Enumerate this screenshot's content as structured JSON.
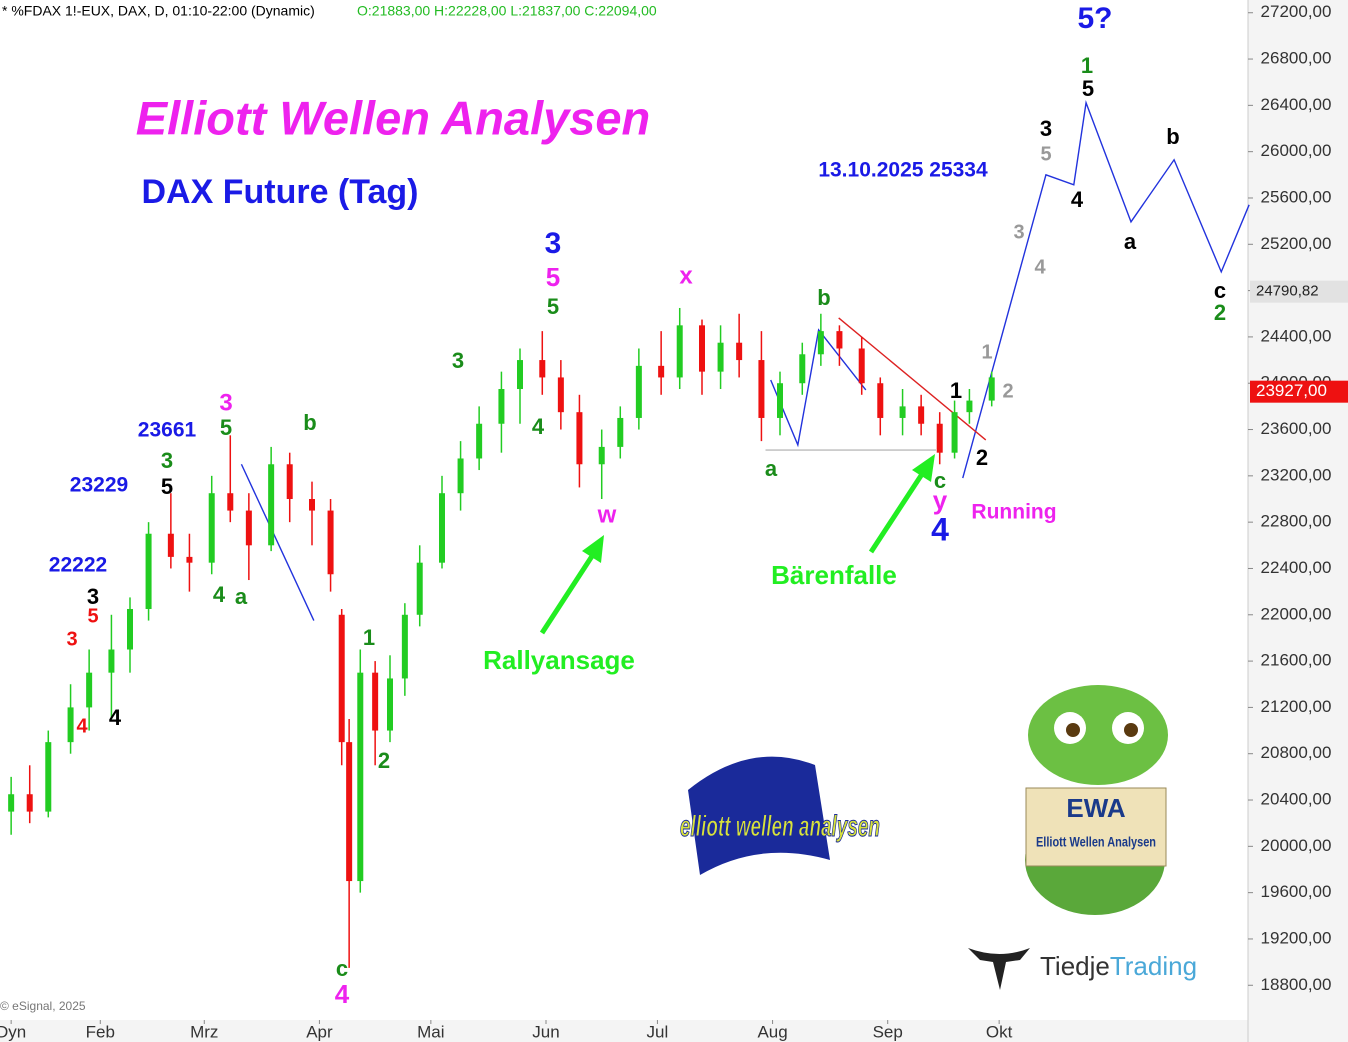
{
  "header": {
    "instrument": "* %FDAX 1!-EUX, DAX, D, 01:10-22:00 (Dynamic)",
    "ohlc": "O:21883,00 H:22228,00 L:21837,00 C:22094,00",
    "copyright": "© eSignal, 2025"
  },
  "chart_data": {
    "type": "candlestick",
    "title": "Elliott Wellen Analysen",
    "subtitle": "DAX Future (Tag)",
    "x": [
      8,
      13,
      18,
      24,
      29,
      35,
      40,
      45,
      51,
      56,
      62,
      67,
      72,
      78,
      83,
      89,
      94,
      97,
      99,
      102,
      106,
      110,
      114,
      118,
      124,
      129,
      134,
      140,
      145,
      151,
      156,
      161,
      167,
      172,
      177,
      183,
      188,
      194,
      199,
      204,
      210,
      215,
      221,
      226,
      231,
      237,
      242,
      248,
      253,
      258,
      262,
      266,
      272
    ],
    "open": [
      20300,
      20450,
      20300,
      20900,
      21200,
      21500,
      21700,
      22050,
      22700,
      22500,
      22450,
      23050,
      22900,
      22600,
      23300,
      23000,
      22900,
      22000,
      20900,
      19700,
      21500,
      21000,
      21450,
      22000,
      22450,
      23050,
      23350,
      23650,
      23950,
      24200,
      24050,
      23750,
      23300,
      23450,
      23700,
      24150,
      24050,
      24500,
      24100,
      24350,
      24200,
      23700,
      24000,
      24250,
      24450,
      24300,
      24000,
      23700,
      23800,
      23650,
      23400,
      23750,
      23850
    ],
    "high": [
      20600,
      20700,
      21000,
      21400,
      21700,
      22000,
      22150,
      22800,
      23050,
      22700,
      23200,
      23550,
      23050,
      23450,
      23400,
      23150,
      23000,
      22050,
      21100,
      21700,
      21600,
      21650,
      22100,
      22600,
      23200,
      23500,
      23800,
      24100,
      24300,
      24450,
      24200,
      23900,
      23600,
      23800,
      24300,
      24450,
      24650,
      24550,
      24500,
      24600,
      24450,
      24100,
      24350,
      24600,
      24500,
      24400,
      24050,
      23950,
      23900,
      23750,
      23850,
      23950,
      24100
    ],
    "low": [
      20100,
      20200,
      20250,
      20800,
      21000,
      21100,
      21500,
      21950,
      22400,
      22200,
      22350,
      22800,
      22300,
      22550,
      22800,
      22600,
      22200,
      20700,
      18950,
      19600,
      20700,
      20900,
      21300,
      21900,
      22400,
      22900,
      23250,
      23400,
      23650,
      23900,
      23600,
      23100,
      23000,
      23350,
      23600,
      23900,
      23950,
      23900,
      23950,
      24050,
      23500,
      23550,
      23900,
      24150,
      24150,
      23900,
      23550,
      23550,
      23550,
      23300,
      23350,
      23650,
      23800
    ],
    "close": [
      20450,
      20300,
      20900,
      21200,
      21500,
      21700,
      22050,
      22700,
      22500,
      22450,
      23050,
      22900,
      22600,
      23300,
      23000,
      22900,
      22350,
      20900,
      19700,
      21500,
      21000,
      21450,
      22000,
      22450,
      23050,
      23350,
      23650,
      23950,
      24200,
      24050,
      23750,
      23300,
      23450,
      23700,
      24150,
      24050,
      24500,
      24100,
      24350,
      24200,
      23700,
      24000,
      24250,
      24450,
      24300,
      24000,
      23700,
      23800,
      23650,
      23400,
      23750,
      23850,
      24050
    ],
    "up_color": "#22cc22",
    "down_color": "#ee1111",
    "xlim": [
      5,
      341
    ],
    "xticks": [
      {
        "value": 8,
        "label": "Dyn"
      },
      {
        "value": 32,
        "label": "Feb"
      },
      {
        "value": 60,
        "label": "Mrz"
      },
      {
        "value": 91,
        "label": "Apr"
      },
      {
        "value": 121,
        "label": "Mai"
      },
      {
        "value": 152,
        "label": "Jun"
      },
      {
        "value": 182,
        "label": "Jul"
      },
      {
        "value": 213,
        "label": "Aug"
      },
      {
        "value": 244,
        "label": "Sep"
      },
      {
        "value": 274,
        "label": "Okt"
      }
    ],
    "ylim": [
      18500,
      27310
    ],
    "yticks": [
      {
        "value": 18800,
        "label": "18800,00"
      },
      {
        "value": 19200,
        "label": "19200,00"
      },
      {
        "value": 19600,
        "label": "19600,00"
      },
      {
        "value": 20000,
        "label": "20000,00"
      },
      {
        "value": 20400,
        "label": "20400,00"
      },
      {
        "value": 20800,
        "label": "20800,00"
      },
      {
        "value": 21200,
        "label": "21200,00"
      },
      {
        "value": 21600,
        "label": "21600,00"
      },
      {
        "value": 22000,
        "label": "22000,00"
      },
      {
        "value": 22400,
        "label": "22400,00"
      },
      {
        "value": 22800,
        "label": "22800,00"
      },
      {
        "value": 23200,
        "label": "23200,00"
      },
      {
        "value": 23600,
        "label": "23600,00"
      },
      {
        "value": 24000,
        "label": "24000,00"
      },
      {
        "value": 24400,
        "label": "24400,00"
      },
      {
        "value": 24800,
        "label": "24800,00"
      },
      {
        "value": 25200,
        "label": "25200,00"
      },
      {
        "value": 25600,
        "label": "25600,00"
      },
      {
        "value": 26000,
        "label": "26000,00"
      },
      {
        "value": 26400,
        "label": "26400,00"
      },
      {
        "value": 26800,
        "label": "26800,00"
      },
      {
        "value": 27200,
        "label": "27200,00"
      }
    ],
    "price_tags": [
      {
        "value": 24790.82,
        "label": "24790,82",
        "color": "#e2e2e2"
      },
      {
        "value": 23927,
        "label": "23927,00",
        "color": "#ee1111"
      }
    ],
    "lines": [
      {
        "color": "#2233dd",
        "x": [
          264.2,
          286.6,
          294.1,
          297.4,
          309.5,
          321.1,
          333.8,
          341.3
        ],
        "values": [
          23181,
          25800,
          25714,
          26422,
          25394,
          25930,
          24962,
          25541
        ]
      },
      {
        "color": "#2233dd",
        "x": [
          212.5,
          219.8,
          225.4,
          238.1
        ],
        "values": [
          24028,
          23467,
          24460,
          23942
        ]
      },
      {
        "color": "#2233dd",
        "x": [
          70,
          89.5
        ],
        "values": [
          23300,
          21950
        ]
      },
      {
        "color": "#dd2222",
        "x": [
          230.8,
          270.4
        ],
        "values": [
          24564,
          23510
        ]
      },
      {
        "color": "#bbbbbb",
        "x": [
          211.1,
          257
        ],
        "values": [
          23423,
          23423
        ]
      }
    ],
    "annotations": [
      {
        "text": "13.10.2025 25334",
        "color": "#1a1ae6"
      },
      {
        "text": "5?",
        "color": "#1a1ae6"
      },
      {
        "text": "1",
        "color": "#1a8c1a"
      },
      {
        "text": "5",
        "color": "#000000"
      },
      {
        "text": "3",
        "color": "#000000"
      },
      {
        "text": "5",
        "color": "#999999"
      },
      {
        "text": "4",
        "color": "#000000"
      },
      {
        "text": "b",
        "color": "#000000"
      },
      {
        "text": "a",
        "color": "#000000"
      },
      {
        "text": "c",
        "color": "#000000"
      },
      {
        "text": "2",
        "color": "#1a8c1a"
      },
      {
        "text": "3",
        "color": "#999999"
      },
      {
        "text": "4",
        "color": "#999999"
      },
      {
        "text": "1",
        "color": "#999999"
      },
      {
        "text": "2",
        "color": "#999999"
      },
      {
        "text": "1",
        "color": "#000000"
      },
      {
        "text": "2",
        "color": "#000000"
      },
      {
        "text": "c",
        "color": "#1a8c1a"
      },
      {
        "text": "y",
        "color": "#ee22ee"
      },
      {
        "text": "4",
        "color": "#1a1ae6"
      },
      {
        "text": "Running",
        "color": "#ee22ee"
      },
      {
        "text": "Bärenfalle",
        "color": "#22ee22"
      },
      {
        "text": "a",
        "color": "#1a8c1a"
      },
      {
        "text": "b",
        "color": "#1a8c1a"
      },
      {
        "text": "x",
        "color": "#ee22ee"
      },
      {
        "text": "w",
        "color": "#ee22ee"
      },
      {
        "text": "Rallyansage",
        "color": "#22ee22"
      },
      {
        "text": "3",
        "color": "#1a1ae6"
      },
      {
        "text": "5",
        "color": "#ee22ee"
      },
      {
        "text": "5",
        "color": "#1a8c1a"
      },
      {
        "text": "3",
        "color": "#1a8c1a"
      },
      {
        "text": "4",
        "color": "#1a8c1a"
      },
      {
        "text": "b",
        "color": "#1a8c1a"
      },
      {
        "text": "3",
        "color": "#ee22ee"
      },
      {
        "text": "5",
        "color": "#1a8c1a"
      },
      {
        "text": "23661",
        "color": "#1a1ae6"
      },
      {
        "text": "3",
        "color": "#1a8c1a"
      },
      {
        "text": "5",
        "color": "#000000"
      },
      {
        "text": "23229",
        "color": "#1a1ae6"
      },
      {
        "text": "4",
        "color": "#1a8c1a"
      },
      {
        "text": "a",
        "color": "#1a8c1a"
      },
      {
        "text": "22222",
        "color": "#1a1ae6"
      },
      {
        "text": "3",
        "color": "#000000"
      },
      {
        "text": "5",
        "color": "#ee1111"
      },
      {
        "text": "3",
        "color": "#ee1111"
      },
      {
        "text": "4",
        "color": "#ee1111"
      },
      {
        "text": "4",
        "color": "#000000"
      },
      {
        "text": "1",
        "color": "#1a8c1a"
      },
      {
        "text": "2",
        "color": "#1a8c1a"
      },
      {
        "text": "c",
        "color": "#1a8c1a"
      },
      {
        "text": "4",
        "color": "#ee22ee"
      }
    ]
  },
  "logos": {
    "ewa_wordmark": "elliott wellen analysen",
    "croc_sign": "EWA",
    "croc_sign_sub": "Elliott Wellen Analysen",
    "brand": "Tiedje",
    "brand2": "Trading"
  }
}
